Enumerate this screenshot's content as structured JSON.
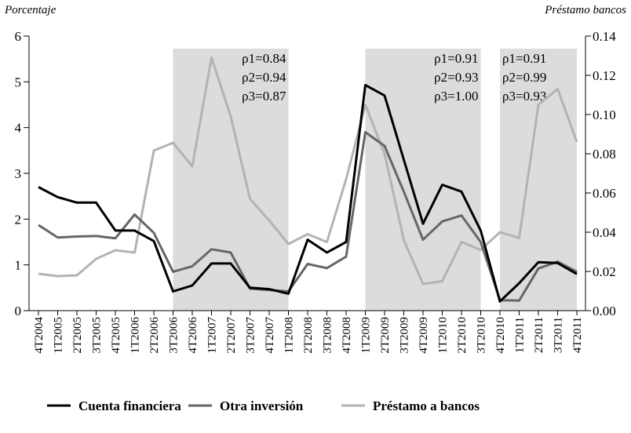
{
  "chart_data": {
    "type": "line",
    "y_label": "Porcentaje",
    "y2_label": "Préstamo bancos",
    "categories": [
      "4T2004",
      "1T2005",
      "2T2005",
      "3T2005",
      "4T2005",
      "1T2006",
      "2T2006",
      "3T2006",
      "4T2006",
      "1T2007",
      "2T2007",
      "3T2007",
      "4T2007",
      "1T2008",
      "2T2008",
      "3T2008",
      "4T2008",
      "1T2009",
      "2T2009",
      "3T2009",
      "4T2009",
      "1T2010",
      "2T2010",
      "3T2010",
      "4T2010",
      "1T2011",
      "2T2011",
      "3T2011",
      "4T2011"
    ],
    "series": [
      {
        "name": "Cuenta financiera",
        "color": "#000000",
        "values": [
          2.7,
          2.48,
          2.36,
          2.36,
          1.75,
          1.75,
          1.52,
          0.42,
          0.55,
          1.03,
          1.03,
          0.5,
          0.47,
          0.37,
          1.55,
          1.27,
          1.5,
          4.93,
          4.7,
          3.3,
          1.9,
          2.75,
          2.6,
          1.75,
          0.2,
          0.6,
          1.06,
          1.04,
          0.8
        ]
      },
      {
        "name": "Otra inversión",
        "color": "#666666",
        "values": [
          1.87,
          1.6,
          1.62,
          1.63,
          1.58,
          2.1,
          1.7,
          0.85,
          0.97,
          1.34,
          1.27,
          0.48,
          0.45,
          0.42,
          1.02,
          0.93,
          1.18,
          3.9,
          3.6,
          2.6,
          1.55,
          1.95,
          2.08,
          1.5,
          0.23,
          0.22,
          0.92,
          1.07,
          0.85
        ]
      },
      {
        "name": "Préstamo a bancos",
        "color": "#b3b3b3",
        "axis": "y2",
        "values": [
          0.0188,
          0.0176,
          0.018,
          0.0264,
          0.0308,
          0.0296,
          0.0816,
          0.0856,
          0.0736,
          0.129,
          0.099,
          0.057,
          0.046,
          0.034,
          0.039,
          0.035,
          0.067,
          0.105,
          0.08,
          0.036,
          0.0136,
          0.015,
          0.035,
          0.031,
          0.04,
          0.037,
          0.105,
          0.113,
          0.086
        ]
      }
    ],
    "ylim": [
      0,
      6
    ],
    "yticks": [
      0,
      1,
      2,
      3,
      4,
      5,
      6
    ],
    "y2lim": [
      0,
      0.14
    ],
    "y2ticks": [
      {
        "value": 0,
        "label": "0.00"
      },
      0.02,
      0.04,
      0.06,
      0.08,
      {
        "value": 0.1,
        "label": "0.10"
      },
      0.12,
      0.14
    ],
    "shaded_regions": [
      {
        "from": "3T2006",
        "to": "1T2008",
        "color": "#dcdcdc",
        "text": [
          "ρ1=0.84",
          "ρ2=0.94",
          "ρ3=0.87"
        ]
      },
      {
        "from": "1T2009",
        "to": "3T2010",
        "color": "#dcdcdc",
        "text": [
          "ρ1=0.91",
          "ρ2=0.93",
          "ρ3=1.00"
        ]
      },
      {
        "from": "4T2010",
        "to": "4T2011",
        "color": "#dcdcdc",
        "text": [
          "ρ1=0.91",
          "ρ2=0.99",
          "ρ3=0.93"
        ]
      }
    ]
  }
}
